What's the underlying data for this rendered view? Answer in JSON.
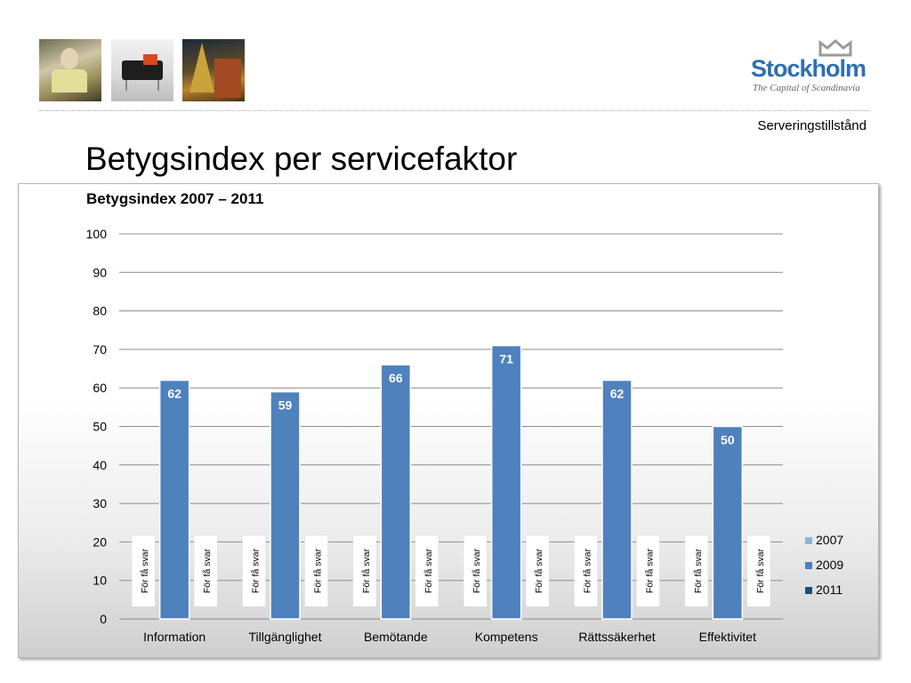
{
  "header": {
    "photos": [
      {
        "subject": "woman with cup"
      },
      {
        "subject": "black sofa"
      },
      {
        "subject": "christmas old town"
      }
    ],
    "logo": {
      "word": "Stockholm",
      "tagline": "The Capital of Scandinavia",
      "icon": "crown-icon",
      "color": "#2d6fb3"
    },
    "section_label": "Serveringstillstånd"
  },
  "page": {
    "title": "Betygsindex per servicefaktor"
  },
  "chart_data": {
    "type": "bar",
    "title": "Betygsindex 2007 – 2011",
    "xlabel": "",
    "ylabel": "",
    "categories": [
      "Information",
      "Tillgänglighet",
      "Bemötande",
      "Kompetens",
      "Rättssäkerhet",
      "Effektivitet"
    ],
    "series": [
      {
        "name": "2007",
        "color": "#8fb4da",
        "values": [
          0,
          0,
          0,
          0,
          0,
          0
        ],
        "labels": [
          "För få svar",
          "För få svar",
          "För få svar",
          "För få svar",
          "För få svar",
          "För få svar"
        ]
      },
      {
        "name": "2009",
        "color": "#4f81bd",
        "values": [
          62,
          59,
          66,
          71,
          62,
          50
        ],
        "labels": [
          "62",
          "59",
          "66",
          "71",
          "62",
          "50"
        ]
      },
      {
        "name": "2011",
        "color": "#1f4e79",
        "values": [
          0,
          0,
          0,
          0,
          0,
          0
        ],
        "labels": [
          "För få svar",
          "För få svar",
          "För få svar",
          "För få svar",
          "För få svar",
          "För få svar"
        ]
      }
    ],
    "ylim": [
      0,
      100
    ],
    "yticks": [
      0,
      10,
      20,
      30,
      40,
      50,
      60,
      70,
      80,
      90,
      100
    ],
    "grid": true,
    "legend": "right"
  }
}
